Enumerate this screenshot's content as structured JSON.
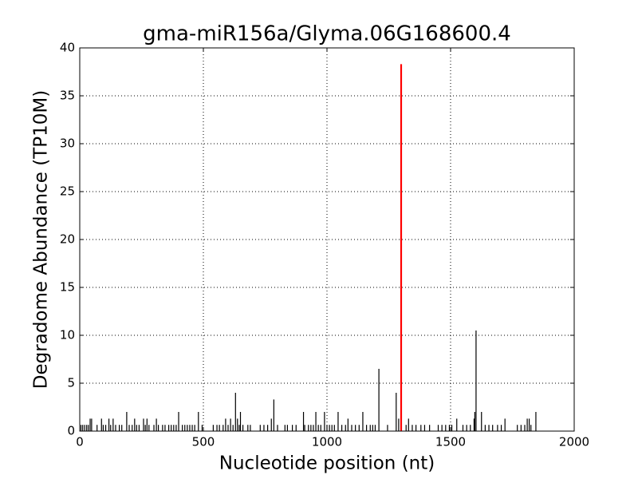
{
  "chart_data": {
    "type": "stem",
    "title": "gma-miR156a/Glyma.06G168600.4",
    "x_label": "Nucleotide position (nt)",
    "y_label": "Degradome Abundance (TP10M)",
    "xlim": [
      0,
      2000
    ],
    "xticks": [
      0,
      500,
      1000,
      1500,
      2000
    ],
    "ylim": [
      0,
      40
    ],
    "yticks": [
      0,
      5,
      10,
      15,
      20,
      25,
      30,
      35,
      40
    ],
    "grid": true,
    "series": [
      {
        "color": "#000000",
        "x": [
          5,
          12,
          20,
          28,
          35,
          42,
          48,
          70,
          88,
          95,
          105,
          118,
          125,
          135,
          145,
          160,
          170,
          190,
          200,
          212,
          222,
          230,
          240,
          258,
          265,
          272,
          280,
          300,
          310,
          318,
          335,
          345,
          360,
          370,
          380,
          390,
          400,
          415,
          425,
          435,
          445,
          455,
          465,
          480,
          495,
          540,
          555,
          565,
          580,
          590,
          600,
          610,
          620,
          630,
          638,
          645,
          650,
          660,
          680,
          690,
          730,
          745,
          760,
          775,
          785,
          800,
          830,
          840,
          860,
          875,
          905,
          910,
          925,
          935,
          945,
          955,
          965,
          975,
          990,
          1000,
          1010,
          1020,
          1030,
          1045,
          1060,
          1075,
          1085,
          1100,
          1115,
          1130,
          1145,
          1160,
          1175,
          1185,
          1195,
          1210,
          1245,
          1280,
          1290,
          1320,
          1330,
          1345,
          1360,
          1380,
          1395,
          1415,
          1450,
          1465,
          1480,
          1495,
          1505,
          1525,
          1550,
          1565,
          1580,
          1595,
          1598,
          1603,
          1625,
          1640,
          1655,
          1670,
          1690,
          1705,
          1720,
          1770,
          1785,
          1800,
          1810,
          1818,
          1825,
          1845
        ],
        "values": [
          0.65,
          0.65,
          0.65,
          0.65,
          0.65,
          1.3,
          1.3,
          0.65,
          1.3,
          0.65,
          0.65,
          1.3,
          0.65,
          1.3,
          0.65,
          0.65,
          0.65,
          2.0,
          0.65,
          0.65,
          1.3,
          0.65,
          0.65,
          1.3,
          0.65,
          1.3,
          0.65,
          0.65,
          1.3,
          0.65,
          0.65,
          0.65,
          0.65,
          0.65,
          0.65,
          0.65,
          2.0,
          0.65,
          0.65,
          0.65,
          0.65,
          0.65,
          0.65,
          2.0,
          0.65,
          0.65,
          0.65,
          0.65,
          0.65,
          1.3,
          0.65,
          1.3,
          0.65,
          4.0,
          1.3,
          0.65,
          2.0,
          0.65,
          0.65,
          0.65,
          0.65,
          0.65,
          0.65,
          1.3,
          3.3,
          0.65,
          0.65,
          0.65,
          0.65,
          0.65,
          2.0,
          0.65,
          0.65,
          0.65,
          0.65,
          2.0,
          0.65,
          0.65,
          2.0,
          0.65,
          0.65,
          0.65,
          0.65,
          2.0,
          0.65,
          0.65,
          1.3,
          0.65,
          0.65,
          0.65,
          2.0,
          0.65,
          0.65,
          0.65,
          0.65,
          6.5,
          0.65,
          4.0,
          1.3,
          0.65,
          1.3,
          0.65,
          0.65,
          0.65,
          0.65,
          0.65,
          0.65,
          0.65,
          0.65,
          0.65,
          0.65,
          1.3,
          0.65,
          0.65,
          0.65,
          1.3,
          2.0,
          10.5,
          2.0,
          0.65,
          0.65,
          0.65,
          0.65,
          0.65,
          1.3,
          0.65,
          0.65,
          0.65,
          1.3,
          1.3,
          0.65,
          2.0
        ]
      },
      {
        "color": "#ff0000",
        "x": [
          1300
        ],
        "values": [
          38.3
        ]
      }
    ]
  }
}
